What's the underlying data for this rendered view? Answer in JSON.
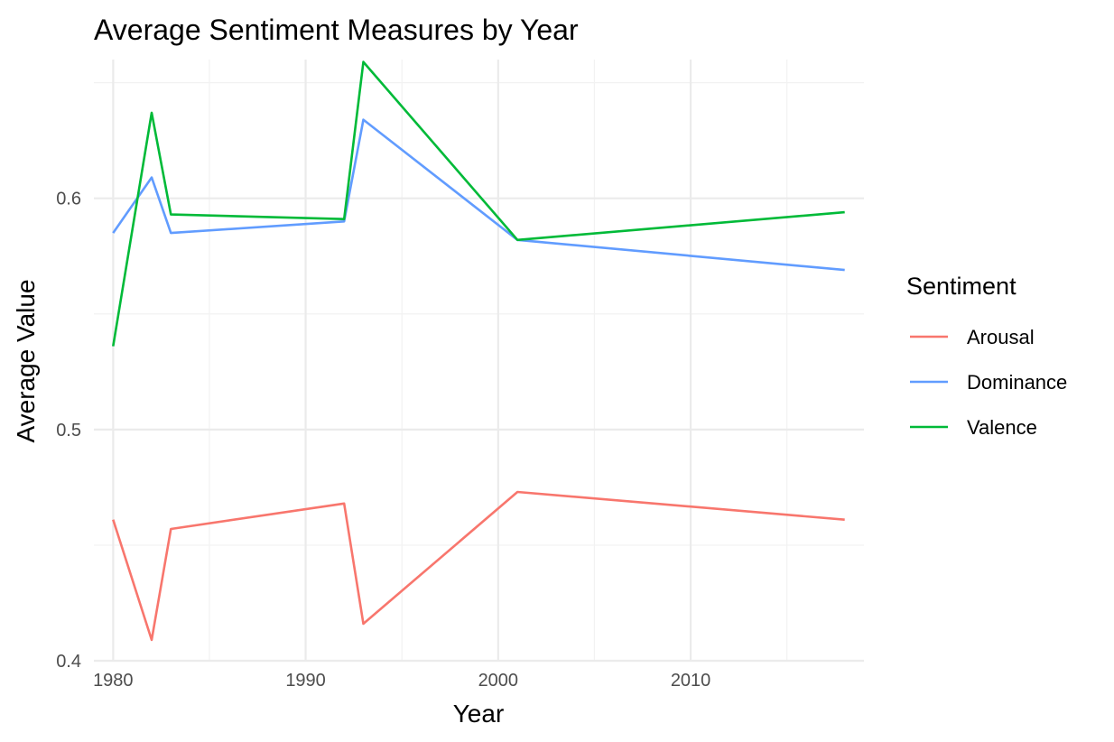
{
  "chart_data": {
    "type": "line",
    "title": "Average Sentiment Measures by Year",
    "xlabel": "Year",
    "ylabel": "Average Value",
    "xlim": [
      1979,
      2019
    ],
    "ylim": [
      0.4,
      0.66
    ],
    "x_ticks": [
      1980,
      1990,
      2000,
      2010
    ],
    "x_minor_ticks": [
      1985,
      1995,
      2005,
      2015
    ],
    "y_ticks": [
      0.4,
      0.5,
      0.6
    ],
    "y_minor_ticks": [
      0.45,
      0.55,
      0.65
    ],
    "x_tick_labels": [
      "1980",
      "1990",
      "2000",
      "2010"
    ],
    "y_tick_labels": [
      "0.4",
      "0.5",
      "0.6"
    ],
    "grid": true,
    "legend": {
      "title": "Sentiment",
      "position": "right"
    },
    "series": [
      {
        "name": "Arousal",
        "color": "#F8766D",
        "x": [
          1980,
          1982,
          1983,
          1992,
          1993,
          2001,
          2018
        ],
        "y": [
          0.461,
          0.409,
          0.457,
          0.468,
          0.416,
          0.473,
          0.461
        ]
      },
      {
        "name": "Dominance",
        "color": "#619CFF",
        "x": [
          1980,
          1982,
          1983,
          1992,
          1993,
          2001,
          2018
        ],
        "y": [
          0.585,
          0.609,
          0.585,
          0.59,
          0.634,
          0.582,
          0.569
        ]
      },
      {
        "name": "Valence",
        "color": "#00BA38",
        "x": [
          1980,
          1982,
          1983,
          1992,
          1993,
          2001,
          2018
        ],
        "y": [
          0.536,
          0.637,
          0.593,
          0.591,
          0.659,
          0.582,
          0.594
        ]
      }
    ]
  }
}
